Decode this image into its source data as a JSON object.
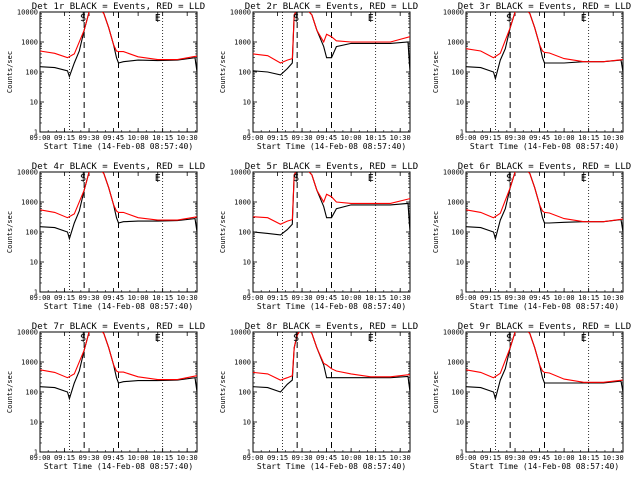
{
  "chart_data": {
    "type": "line",
    "layout": "3x3 grid",
    "shared": {
      "xlabel": "Start Time (14-Feb-08 08:57:40)",
      "ylabel": "Counts/sec",
      "x_tick_labels": [
        "09:00",
        "09:15",
        "09:30",
        "09:45",
        "10:00",
        "10:15",
        "10:30"
      ],
      "x_ticks_hours": [
        9.0,
        9.25,
        9.5,
        9.75,
        10.0,
        10.25,
        10.5
      ],
      "xlim_hours": [
        9.0,
        10.6
      ],
      "y_scale": "log",
      "ylim": [
        1,
        10000
      ],
      "y_tick_labels": [
        "1",
        "10",
        "100",
        "1000",
        "10000"
      ],
      "series_colors": {
        "Events": "#000000",
        "LLD": "#ff0000"
      },
      "markers": [
        {
          "label": "S",
          "hour": 9.44,
          "style": "solid"
        },
        {
          "label": "E",
          "hour": 10.2,
          "style": "solid"
        }
      ],
      "dotted_lines_hours": [
        9.3,
        10.25
      ],
      "dashed_lines_hours": [
        9.45,
        9.8
      ]
    },
    "panels": [
      {
        "title": "Det 1r BLACK = Events, RED = LLD",
        "series": [
          {
            "name": "Events",
            "x": [
              9.0,
              9.15,
              9.28,
              9.3,
              9.35,
              9.4,
              9.45,
              9.5,
              9.55,
              9.6,
              9.65,
              9.7,
              9.75,
              9.78,
              9.8,
              9.85,
              10.0,
              10.2,
              10.4,
              10.58,
              10.6
            ],
            "y": [
              150,
              140,
              110,
              70,
              200,
              500,
              2500,
              10000,
              14000,
              13000,
              9000,
              3000,
              800,
              300,
              200,
              220,
              250,
              240,
              250,
              300,
              100
            ]
          },
          {
            "name": "LLD",
            "x": [
              9.0,
              9.15,
              9.28,
              9.35,
              9.45,
              9.5,
              9.55,
              9.6,
              9.65,
              9.7,
              9.75,
              9.78,
              9.8,
              9.85,
              10.0,
              10.2,
              10.4,
              10.6
            ],
            "y": [
              500,
              420,
              300,
              400,
              2500,
              10000,
              14000,
              13000,
              9000,
              3000,
              800,
              500,
              480,
              480,
              320,
              260,
              260,
              340
            ]
          }
        ]
      },
      {
        "title": "Det 2r BLACK = Events, RED = LLD",
        "series": [
          {
            "name": "Events",
            "x": [
              9.0,
              9.15,
              9.28,
              9.35,
              9.4,
              9.42,
              9.45,
              9.5,
              9.55,
              9.6,
              9.65,
              9.72,
              9.75,
              9.78,
              9.8,
              9.85,
              10.0,
              10.2,
              10.4,
              10.58,
              10.6
            ],
            "y": [
              110,
              100,
              80,
              130,
              200,
              8000,
              12000,
              14000,
              12000,
              8000,
              2500,
              700,
              300,
              300,
              300,
              700,
              900,
              900,
              900,
              1000,
              100
            ]
          },
          {
            "name": "LLD",
            "x": [
              9.0,
              9.15,
              9.28,
              9.35,
              9.4,
              9.42,
              9.45,
              9.5,
              9.55,
              9.6,
              9.65,
              9.72,
              9.75,
              9.8,
              9.85,
              10.0,
              10.2,
              10.4,
              10.6
            ],
            "y": [
              400,
              350,
              200,
              250,
              280,
              8000,
              12000,
              14000,
              12000,
              8000,
              2500,
              1000,
              1800,
              1500,
              1100,
              1000,
              1000,
              1000,
              1500
            ]
          }
        ]
      },
      {
        "title": "Det 3r BLACK = Events, RED = LLD",
        "series": [
          {
            "name": "Events",
            "x": [
              9.0,
              9.15,
              9.28,
              9.3,
              9.35,
              9.4,
              9.45,
              9.5,
              9.55,
              9.6,
              9.65,
              9.7,
              9.75,
              9.78,
              9.8,
              9.85,
              10.0,
              10.2,
              10.4,
              10.58,
              10.6
            ],
            "y": [
              150,
              140,
              100,
              60,
              250,
              600,
              3000,
              10000,
              14000,
              13000,
              9000,
              3000,
              800,
              300,
              200,
              200,
              200,
              220,
              220,
              250,
              100
            ]
          },
          {
            "name": "LLD",
            "x": [
              9.0,
              9.15,
              9.28,
              9.35,
              9.45,
              9.5,
              9.55,
              9.6,
              9.65,
              9.7,
              9.75,
              9.78,
              9.8,
              9.85,
              10.0,
              10.2,
              10.4,
              10.6
            ],
            "y": [
              600,
              500,
              300,
              420,
              3000,
              10000,
              14000,
              13000,
              9000,
              3000,
              800,
              500,
              450,
              430,
              280,
              220,
              220,
              260
            ]
          }
        ]
      },
      {
        "title": "Det 4r BLACK = Events, RED = LLD",
        "series": [
          {
            "name": "Events",
            "x": [
              9.0,
              9.15,
              9.28,
              9.3,
              9.35,
              9.4,
              9.45,
              9.5,
              9.55,
              9.6,
              9.65,
              9.7,
              9.75,
              9.78,
              9.8,
              9.85,
              10.0,
              10.2,
              10.4,
              10.58,
              10.6
            ],
            "y": [
              150,
              140,
              100,
              60,
              200,
              500,
              2500,
              10000,
              14000,
              13000,
              9000,
              3000,
              800,
              300,
              200,
              220,
              230,
              230,
              240,
              280,
              100
            ]
          },
          {
            "name": "LLD",
            "x": [
              9.0,
              9.15,
              9.28,
              9.35,
              9.45,
              9.5,
              9.55,
              9.6,
              9.65,
              9.7,
              9.75,
              9.78,
              9.8,
              9.85,
              10.0,
              10.2,
              10.4,
              10.6
            ],
            "y": [
              550,
              450,
              300,
              400,
              2500,
              10000,
              14000,
              13000,
              9000,
              3000,
              800,
              500,
              450,
              450,
              300,
              250,
              250,
              320
            ]
          }
        ]
      },
      {
        "title": "Det 5r BLACK = Events, RED = LLD",
        "series": [
          {
            "name": "Events",
            "x": [
              9.0,
              9.15,
              9.28,
              9.35,
              9.4,
              9.42,
              9.45,
              9.5,
              9.55,
              9.6,
              9.65,
              9.72,
              9.75,
              9.78,
              9.8,
              9.85,
              10.0,
              10.2,
              10.4,
              10.58,
              10.6
            ],
            "y": [
              100,
              90,
              80,
              120,
              180,
              8000,
              12000,
              14000,
              12000,
              8000,
              2500,
              700,
              300,
              300,
              300,
              600,
              800,
              800,
              800,
              900,
              100
            ]
          },
          {
            "name": "LLD",
            "x": [
              9.0,
              9.15,
              9.28,
              9.35,
              9.4,
              9.42,
              9.45,
              9.5,
              9.55,
              9.6,
              9.65,
              9.72,
              9.75,
              9.8,
              9.85,
              10.0,
              10.2,
              10.4,
              10.6
            ],
            "y": [
              320,
              300,
              180,
              230,
              260,
              8000,
              12000,
              14000,
              12000,
              8000,
              2500,
              1000,
              1800,
              1500,
              1000,
              900,
              900,
              900,
              1300
            ]
          }
        ]
      },
      {
        "title": "Det 6r BLACK = Events, RED = LLD",
        "series": [
          {
            "name": "Events",
            "x": [
              9.0,
              9.15,
              9.28,
              9.3,
              9.35,
              9.4,
              9.45,
              9.5,
              9.55,
              9.6,
              9.65,
              9.7,
              9.75,
              9.78,
              9.8,
              9.85,
              10.0,
              10.2,
              10.4,
              10.58,
              10.6
            ],
            "y": [
              150,
              140,
              100,
              60,
              250,
              600,
              3000,
              10000,
              14000,
              13000,
              9000,
              3000,
              800,
              300,
              200,
              200,
              210,
              220,
              220,
              260,
              100
            ]
          },
          {
            "name": "LLD",
            "x": [
              9.0,
              9.15,
              9.28,
              9.35,
              9.45,
              9.5,
              9.55,
              9.6,
              9.65,
              9.7,
              9.75,
              9.78,
              9.8,
              9.85,
              10.0,
              10.2,
              10.4,
              10.6
            ],
            "y": [
              550,
              450,
              300,
              420,
              3000,
              10000,
              14000,
              13000,
              9000,
              3000,
              800,
              500,
              450,
              430,
              280,
              220,
              220,
              270
            ]
          }
        ]
      },
      {
        "title": "Det 7r BLACK = Events, RED = LLD",
        "series": [
          {
            "name": "Events",
            "x": [
              9.0,
              9.15,
              9.28,
              9.3,
              9.35,
              9.4,
              9.45,
              9.5,
              9.55,
              9.6,
              9.65,
              9.7,
              9.75,
              9.78,
              9.8,
              9.85,
              10.0,
              10.2,
              10.4,
              10.58,
              10.6
            ],
            "y": [
              150,
              140,
              100,
              60,
              200,
              500,
              2500,
              10000,
              14000,
              13000,
              9000,
              3000,
              800,
              300,
              200,
              220,
              240,
              240,
              250,
              300,
              100
            ]
          },
          {
            "name": "LLD",
            "x": [
              9.0,
              9.15,
              9.28,
              9.35,
              9.45,
              9.5,
              9.55,
              9.6,
              9.65,
              9.7,
              9.75,
              9.78,
              9.8,
              9.85,
              10.0,
              10.2,
              10.4,
              10.6
            ],
            "y": [
              550,
              450,
              300,
              400,
              2500,
              10000,
              14000,
              13000,
              9000,
              3000,
              800,
              500,
              460,
              460,
              320,
              260,
              260,
              350
            ]
          }
        ]
      },
      {
        "title": "Det 8r BLACK = Events, RED = LLD",
        "series": [
          {
            "name": "Events",
            "x": [
              9.0,
              9.15,
              9.28,
              9.35,
              9.4,
              9.42,
              9.45,
              9.5,
              9.55,
              9.6,
              9.65,
              9.72,
              9.75,
              9.78,
              9.8,
              9.85,
              10.0,
              10.2,
              10.4,
              10.58,
              10.6
            ],
            "y": [
              150,
              140,
              100,
              180,
              250,
              3000,
              8000,
              14000,
              13000,
              9000,
              3000,
              800,
              300,
              300,
              300,
              300,
              300,
              300,
              300,
              330,
              100
            ]
          },
          {
            "name": "LLD",
            "x": [
              9.0,
              9.15,
              9.28,
              9.35,
              9.4,
              9.42,
              9.45,
              9.5,
              9.55,
              9.6,
              9.65,
              9.72,
              9.75,
              9.8,
              9.85,
              10.0,
              10.2,
              10.4,
              10.6
            ],
            "y": [
              450,
              400,
              250,
              300,
              350,
              3000,
              8000,
              14000,
              13000,
              9000,
              3000,
              900,
              800,
              600,
              500,
              400,
              320,
              320,
              380
            ]
          }
        ]
      },
      {
        "title": "Det 9r BLACK = Events, RED = LLD",
        "series": [
          {
            "name": "Events",
            "x": [
              9.0,
              9.15,
              9.28,
              9.3,
              9.35,
              9.4,
              9.45,
              9.5,
              9.55,
              9.6,
              9.65,
              9.7,
              9.75,
              9.78,
              9.8,
              9.85,
              10.0,
              10.2,
              10.4,
              10.58,
              10.6
            ],
            "y": [
              150,
              140,
              100,
              60,
              250,
              600,
              3000,
              10000,
              14000,
              13000,
              9000,
              3000,
              800,
              300,
              200,
              200,
              200,
              200,
              200,
              230,
              100
            ]
          },
          {
            "name": "LLD",
            "x": [
              9.0,
              9.15,
              9.28,
              9.35,
              9.45,
              9.5,
              9.55,
              9.6,
              9.65,
              9.7,
              9.75,
              9.78,
              9.8,
              9.85,
              10.0,
              10.2,
              10.4,
              10.6
            ],
            "y": [
              550,
              450,
              300,
              420,
              3000,
              10000,
              14000,
              13000,
              9000,
              3000,
              800,
              500,
              450,
              430,
              270,
              210,
              210,
              250
            ]
          }
        ]
      }
    ]
  }
}
